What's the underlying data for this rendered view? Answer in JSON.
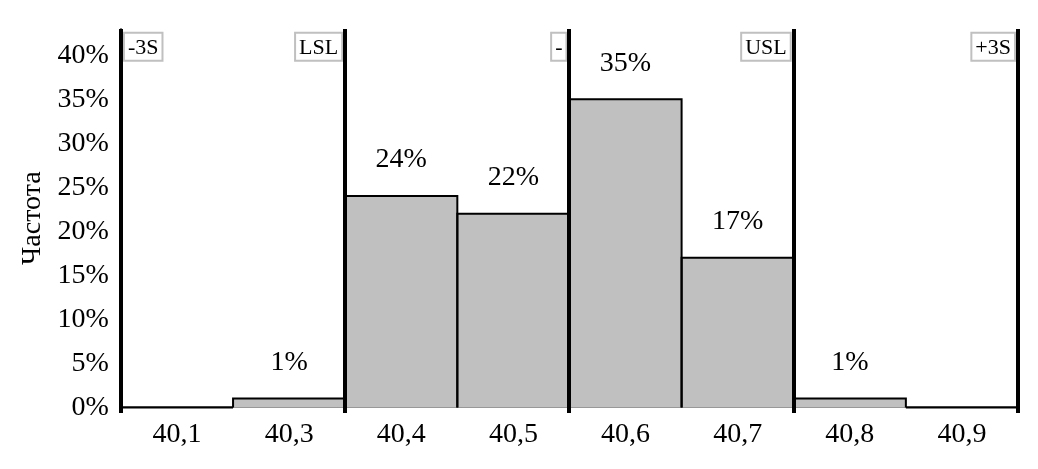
{
  "chart_data": {
    "type": "bar",
    "ylabel": "Частота",
    "categories": [
      "40,1",
      "40,3",
      "40,4",
      "40,5",
      "40,6",
      "40,7",
      "40,8",
      "40,9"
    ],
    "values": [
      0,
      1,
      24,
      22,
      35,
      17,
      1,
      0
    ],
    "value_labels": [
      null,
      "1%",
      "24%",
      "22%",
      "35%",
      "17%",
      "1%",
      null
    ],
    "color": "#c0c0c0",
    "ylim": [
      0,
      43
    ],
    "yticks": [
      {
        "value": 0,
        "label": "0%"
      },
      {
        "value": 5,
        "label": "5%"
      },
      {
        "value": 10,
        "label": "10%"
      },
      {
        "value": 15,
        "label": "15%"
      },
      {
        "value": 20,
        "label": "20%"
      },
      {
        "value": 25,
        "label": "25%"
      },
      {
        "value": 30,
        "label": "30%"
      },
      {
        "value": 35,
        "label": "35%"
      },
      {
        "value": 40,
        "label": "40%"
      }
    ],
    "grid": false,
    "legend": false,
    "annotations": [
      "-3S",
      "LSL",
      "-",
      "USL",
      "+3S"
    ]
  }
}
